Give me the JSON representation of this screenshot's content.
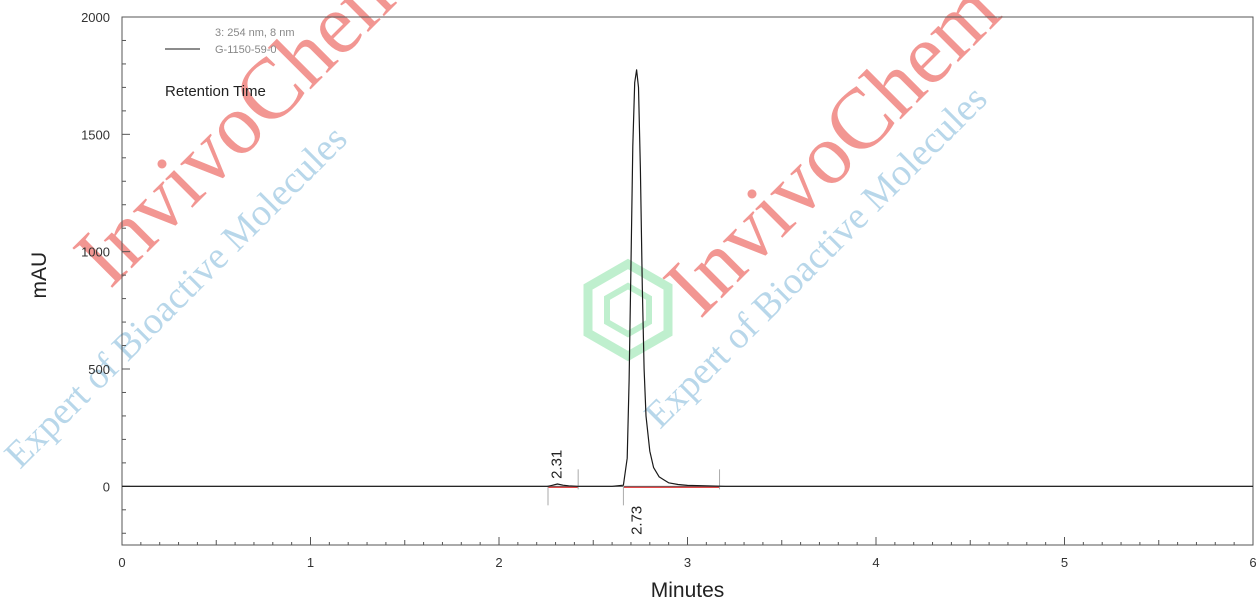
{
  "watermark": {
    "brand": "InvivoChem",
    "tagline": "Expert of Bioactive Molecules",
    "brand_color": "#e8403a",
    "tagline_color": "#7fb6d9",
    "logo_color": "#3fcf6a"
  },
  "chart_data": {
    "type": "line",
    "title": "",
    "xlabel": "Minutes",
    "ylabel": "mAU",
    "xlim": [
      0,
      6
    ],
    "ylim": [
      -250,
      2000
    ],
    "x_ticks": [
      0,
      1,
      2,
      3,
      4,
      5,
      6
    ],
    "y_ticks": [
      0,
      500,
      1000,
      1500,
      2000
    ],
    "grid": false,
    "legend_placement": "top-left",
    "legend": {
      "detector": "3: 254 nm, 8 nm",
      "sample": "G-1150-59-0"
    },
    "annotation": "Retention Time",
    "series": [
      {
        "name": "G-1150-59-0",
        "color": "#1a1a1a",
        "x": [
          0.0,
          2.0,
          2.26,
          2.28,
          2.31,
          2.34,
          2.37,
          2.42,
          2.5,
          2.6,
          2.66,
          2.68,
          2.69,
          2.7,
          2.71,
          2.72,
          2.73,
          2.74,
          2.75,
          2.76,
          2.77,
          2.78,
          2.8,
          2.82,
          2.85,
          2.9,
          2.95,
          3.0,
          3.1,
          3.2,
          4.0,
          6.0
        ],
        "y": [
          0,
          0,
          0,
          4,
          10,
          5,
          2,
          0,
          0,
          0,
          5,
          120,
          450,
          950,
          1450,
          1720,
          1775,
          1700,
          1350,
          850,
          500,
          300,
          150,
          80,
          40,
          15,
          8,
          4,
          2,
          0,
          0,
          0
        ]
      }
    ],
    "peaks": [
      {
        "label": "2.31",
        "time": 2.31,
        "baseline_start": 2.26,
        "baseline_end": 2.42
      },
      {
        "label": "2.73",
        "time": 2.73,
        "baseline_start": 2.66,
        "baseline_end": 3.17
      }
    ],
    "baseline_color": "#e03030"
  }
}
